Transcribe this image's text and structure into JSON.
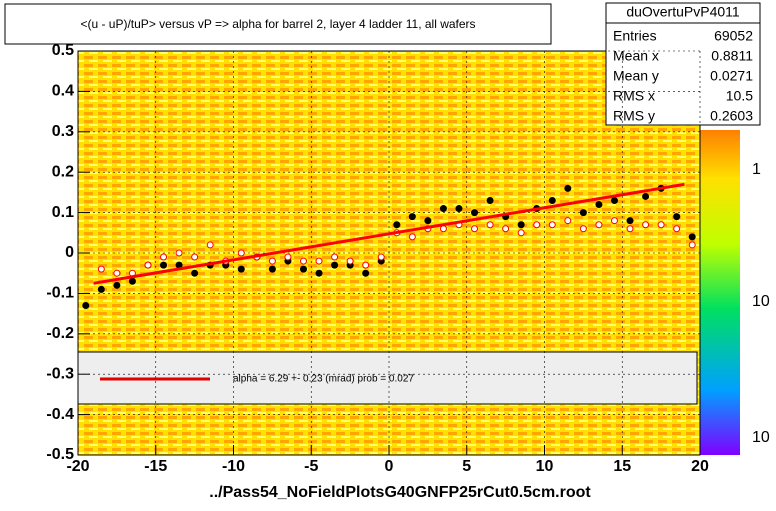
{
  "chart_data": {
    "type": "scatter",
    "title": "<(u - uP)/tuP> versus   vP => alpha for barrel 2, layer 4 ladder 11, all wafers",
    "x_label": "../Pass54_NoFieldPlotsG40GNFP25rCut0.5cm.root",
    "xlim": [
      -20,
      20
    ],
    "xticks": [
      -20,
      -15,
      -10,
      -5,
      0,
      5,
      10,
      15,
      20
    ],
    "ylim": [
      -0.5,
      0.5
    ],
    "yticks": [
      -0.5,
      -0.4,
      -0.3,
      -0.2,
      -0.1,
      0,
      0.1,
      0.2,
      0.3,
      0.4,
      0.5
    ],
    "stats": {
      "name": "duOvertuPvP4011",
      "rows": [
        [
          "Entries",
          "69052"
        ],
        [
          "Mean x",
          "0.8811"
        ],
        [
          "Mean y",
          "0.0271"
        ],
        [
          "RMS x",
          "10.5"
        ],
        [
          "RMS y",
          "0.2603"
        ]
      ]
    },
    "legend_text": "alpha =    6.29 +-  0.23 (mrad) prob = 0.027",
    "palette_labels": [
      "1",
      "10",
      "10"
    ],
    "series": [
      {
        "name": "profile",
        "color": "#000000",
        "x": [
          -19.5,
          -18.5,
          -17.5,
          -16.5,
          -15.5,
          -14.5,
          -13.5,
          -12.5,
          -11.5,
          -10.5,
          -9.5,
          -8.5,
          -7.5,
          -6.5,
          -5.5,
          -4.5,
          -3.5,
          -2.5,
          -1.5,
          -0.5,
          0.5,
          1.5,
          2.5,
          3.5,
          4.5,
          5.5,
          6.5,
          7.5,
          8.5,
          9.5,
          10.5,
          11.5,
          12.5,
          13.5,
          14.5,
          15.5,
          16.5,
          17.5,
          18.5,
          19.5
        ],
        "values": [
          -0.13,
          -0.09,
          -0.08,
          -0.07,
          -0.03,
          -0.03,
          -0.03,
          -0.05,
          -0.03,
          -0.03,
          -0.04,
          -0.01,
          -0.04,
          -0.02,
          -0.04,
          -0.05,
          -0.03,
          -0.03,
          -0.05,
          -0.02,
          0.07,
          0.09,
          0.08,
          0.11,
          0.11,
          0.1,
          0.13,
          0.09,
          0.07,
          0.11,
          0.13,
          0.16,
          0.1,
          0.12,
          0.13,
          0.08,
          0.14,
          0.16,
          0.09,
          0.04
        ]
      },
      {
        "name": "mean",
        "color": "#ff0000",
        "x": [
          -18.5,
          -17.5,
          -16.5,
          -15.5,
          -14.5,
          -13.5,
          -12.5,
          -11.5,
          -10.5,
          -9.5,
          -8.5,
          -7.5,
          -6.5,
          -5.5,
          -4.5,
          -3.5,
          -2.5,
          -1.5,
          -0.5,
          0.5,
          1.5,
          2.5,
          3.5,
          4.5,
          5.5,
          6.5,
          7.5,
          8.5,
          9.5,
          10.5,
          11.5,
          12.5,
          13.5,
          14.5,
          15.5,
          16.5,
          17.5,
          18.5,
          19.5
        ],
        "values": [
          -0.04,
          -0.05,
          -0.05,
          -0.03,
          -0.01,
          0.0,
          -0.01,
          0.02,
          -0.02,
          0.0,
          -0.01,
          -0.02,
          -0.01,
          -0.02,
          -0.02,
          -0.01,
          -0.02,
          -0.03,
          -0.01,
          0.05,
          0.04,
          0.06,
          0.06,
          0.07,
          0.06,
          0.07,
          0.06,
          0.05,
          0.07,
          0.07,
          0.08,
          0.06,
          0.07,
          0.08,
          0.06,
          0.07,
          0.07,
          0.06,
          0.02
        ]
      },
      {
        "name": "fit",
        "color": "#ff0000",
        "x": [
          -19,
          19
        ],
        "values": [
          -0.075,
          0.17
        ]
      }
    ]
  }
}
